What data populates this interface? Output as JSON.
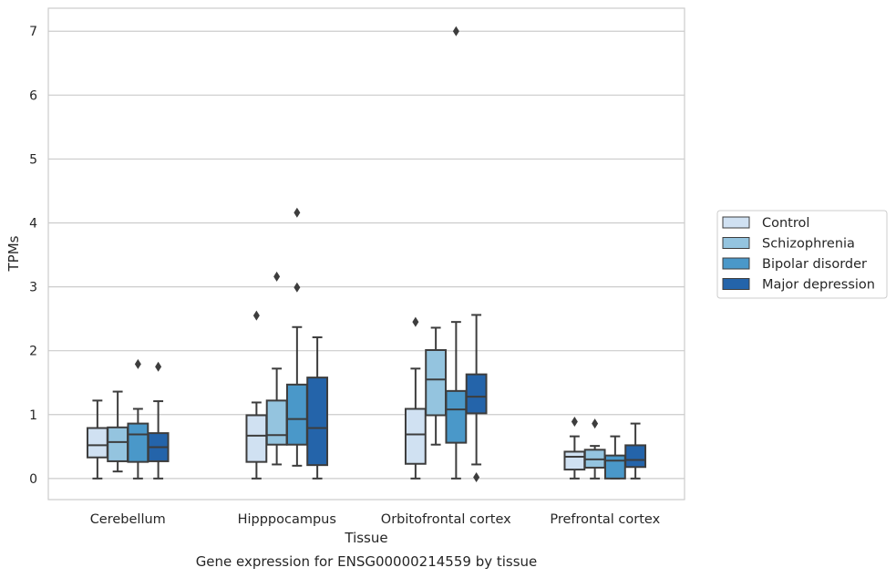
{
  "caption": "Gene expression for ENSG00000214559 by tissue",
  "chart_data": {
    "type": "box",
    "xlabel": "Tissue",
    "ylabel": "TPMs",
    "ylim": [
      -0.33,
      7.36
    ],
    "yticks": [
      0,
      1,
      2,
      3,
      4,
      5,
      6,
      7
    ],
    "grid": "horizontal",
    "legend_placement": "right",
    "categories": [
      "Cerebellum",
      "Hipppocampus",
      "Orbitofrontal cortex",
      "Prefrontal cortex"
    ],
    "series": [
      {
        "name": "Control",
        "color": "#d0e1f2",
        "boxes": [
          {
            "whislo": 0.0,
            "q1": 0.33,
            "med": 0.52,
            "q3": 0.79,
            "whishi": 1.22,
            "fliers": []
          },
          {
            "whislo": 0.0,
            "q1": 0.26,
            "med": 0.67,
            "q3": 0.99,
            "whishi": 1.19,
            "fliers": [
              2.55
            ]
          },
          {
            "whislo": 0.0,
            "q1": 0.23,
            "med": 0.69,
            "q3": 1.09,
            "whishi": 1.72,
            "fliers": [
              2.45
            ]
          },
          {
            "whislo": 0.0,
            "q1": 0.14,
            "med": 0.34,
            "q3": 0.42,
            "whishi": 0.66,
            "fliers": [
              0.89
            ]
          }
        ]
      },
      {
        "name": "Schizophrenia",
        "color": "#94c4df",
        "boxes": [
          {
            "whislo": 0.11,
            "q1": 0.27,
            "med": 0.57,
            "q3": 0.8,
            "whishi": 1.36,
            "fliers": []
          },
          {
            "whislo": 0.22,
            "q1": 0.53,
            "med": 0.68,
            "q3": 1.22,
            "whishi": 1.72,
            "fliers": [
              3.16
            ]
          },
          {
            "whislo": 0.53,
            "q1": 0.99,
            "med": 1.55,
            "q3": 2.01,
            "whishi": 2.36,
            "fliers": []
          },
          {
            "whislo": 0.0,
            "q1": 0.17,
            "med": 0.3,
            "q3": 0.45,
            "whishi": 0.51,
            "fliers": [
              0.86
            ]
          }
        ]
      },
      {
        "name": "Bipolar disorder",
        "color": "#4a98c9",
        "boxes": [
          {
            "whislo": 0.0,
            "q1": 0.26,
            "med": 0.69,
            "q3": 0.86,
            "whishi": 1.09,
            "fliers": [
              1.79
            ]
          },
          {
            "whislo": 0.2,
            "q1": 0.53,
            "med": 0.93,
            "q3": 1.47,
            "whishi": 2.37,
            "fliers": [
              2.99,
              4.16
            ]
          },
          {
            "whislo": 0.0,
            "q1": 0.56,
            "med": 1.08,
            "q3": 1.37,
            "whishi": 2.45,
            "fliers": [
              7.0
            ]
          },
          {
            "whislo": 0.0,
            "q1": 0.0,
            "med": 0.28,
            "q3": 0.36,
            "whishi": 0.66,
            "fliers": []
          }
        ]
      },
      {
        "name": "Major depression",
        "color": "#2464aa",
        "boxes": [
          {
            "whislo": 0.0,
            "q1": 0.27,
            "med": 0.49,
            "q3": 0.71,
            "whishi": 1.21,
            "fliers": [
              1.75
            ]
          },
          {
            "whislo": 0.0,
            "q1": 0.21,
            "med": 0.79,
            "q3": 1.58,
            "whishi": 2.21,
            "fliers": []
          },
          {
            "whislo": 0.22,
            "q1": 1.02,
            "med": 1.28,
            "q3": 1.63,
            "whishi": 2.56,
            "fliers": [
              0.02
            ]
          },
          {
            "whislo": 0.0,
            "q1": 0.18,
            "med": 0.29,
            "q3": 0.52,
            "whishi": 0.86,
            "fliers": []
          }
        ]
      }
    ]
  }
}
